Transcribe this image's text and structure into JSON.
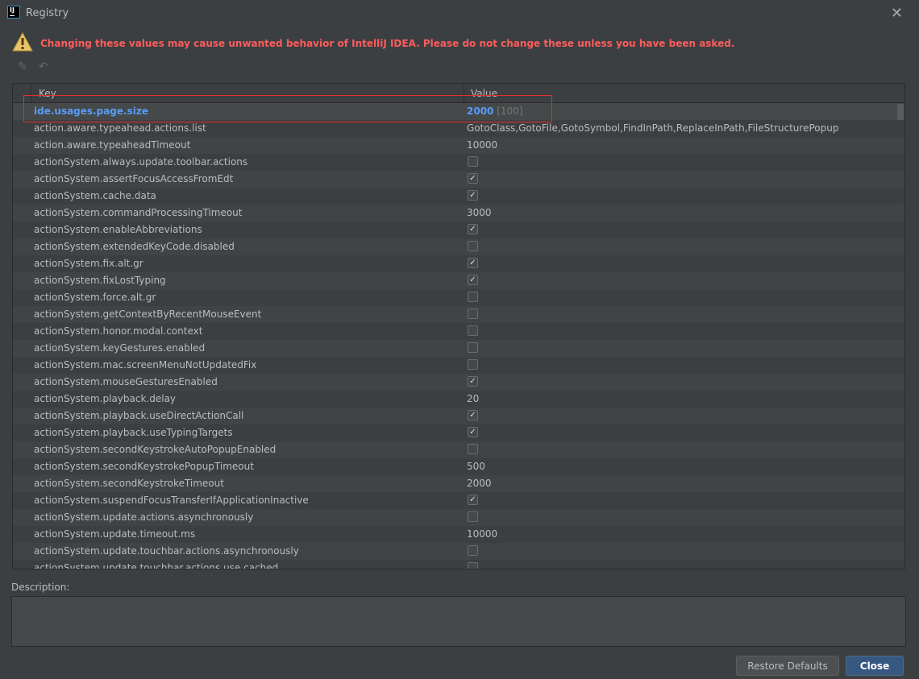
{
  "window": {
    "title": "Registry",
    "logo": "IJ"
  },
  "warning": {
    "icon": "warning-icon",
    "text": "Changing these values may cause unwanted behavior of IntelliJ IDEA. Please do not change these unless you have been asked."
  },
  "toolbar": {
    "edit": "pencil-icon",
    "revert": "undo-icon"
  },
  "table": {
    "headers": {
      "key": "Key",
      "value": "Value"
    },
    "selected": {
      "key": "ide.usages.page.size",
      "value": "2000",
      "default": "[100]"
    },
    "rows": [
      {
        "key": "action.aware.typeahead.actions.list",
        "value": "GotoClass,GotoFile,GotoSymbol,FindInPath,ReplaceInPath,FileStructurePopup"
      },
      {
        "key": "action.aware.typeaheadTimeout",
        "value": "10000"
      },
      {
        "key": "actionSystem.always.update.toolbar.actions",
        "checked": false
      },
      {
        "key": "actionSystem.assertFocusAccessFromEdt",
        "checked": true
      },
      {
        "key": "actionSystem.cache.data",
        "checked": true
      },
      {
        "key": "actionSystem.commandProcessingTimeout",
        "value": "3000"
      },
      {
        "key": "actionSystem.enableAbbreviations",
        "checked": true
      },
      {
        "key": "actionSystem.extendedKeyCode.disabled",
        "checked": false
      },
      {
        "key": "actionSystem.fix.alt.gr",
        "checked": true
      },
      {
        "key": "actionSystem.fixLostTyping",
        "checked": true
      },
      {
        "key": "actionSystem.force.alt.gr",
        "checked": false
      },
      {
        "key": "actionSystem.getContextByRecentMouseEvent",
        "checked": false
      },
      {
        "key": "actionSystem.honor.modal.context",
        "checked": false
      },
      {
        "key": "actionSystem.keyGestures.enabled",
        "checked": false
      },
      {
        "key": "actionSystem.mac.screenMenuNotUpdatedFix",
        "checked": false
      },
      {
        "key": "actionSystem.mouseGesturesEnabled",
        "checked": true
      },
      {
        "key": "actionSystem.playback.delay",
        "value": "20"
      },
      {
        "key": "actionSystem.playback.useDirectActionCall",
        "checked": true
      },
      {
        "key": "actionSystem.playback.useTypingTargets",
        "checked": true
      },
      {
        "key": "actionSystem.secondKeystrokeAutoPopupEnabled",
        "checked": false
      },
      {
        "key": "actionSystem.secondKeystrokePopupTimeout",
        "value": "500"
      },
      {
        "key": "actionSystem.secondKeystrokeTimeout",
        "value": "2000"
      },
      {
        "key": "actionSystem.suspendFocusTransferIfApplicationInactive",
        "checked": true
      },
      {
        "key": "actionSystem.update.actions.asynchronously",
        "checked": false
      },
      {
        "key": "actionSystem.update.timeout.ms",
        "value": "10000"
      },
      {
        "key": "actionSystem.update.touchbar.actions.asynchronously",
        "checked": false
      },
      {
        "key": "actionSystem.update.touchbar.actions.use.cached",
        "checked": false
      }
    ]
  },
  "description": {
    "label": "Description:",
    "value": ""
  },
  "buttons": {
    "restore": "Restore Defaults",
    "close": "Close"
  }
}
